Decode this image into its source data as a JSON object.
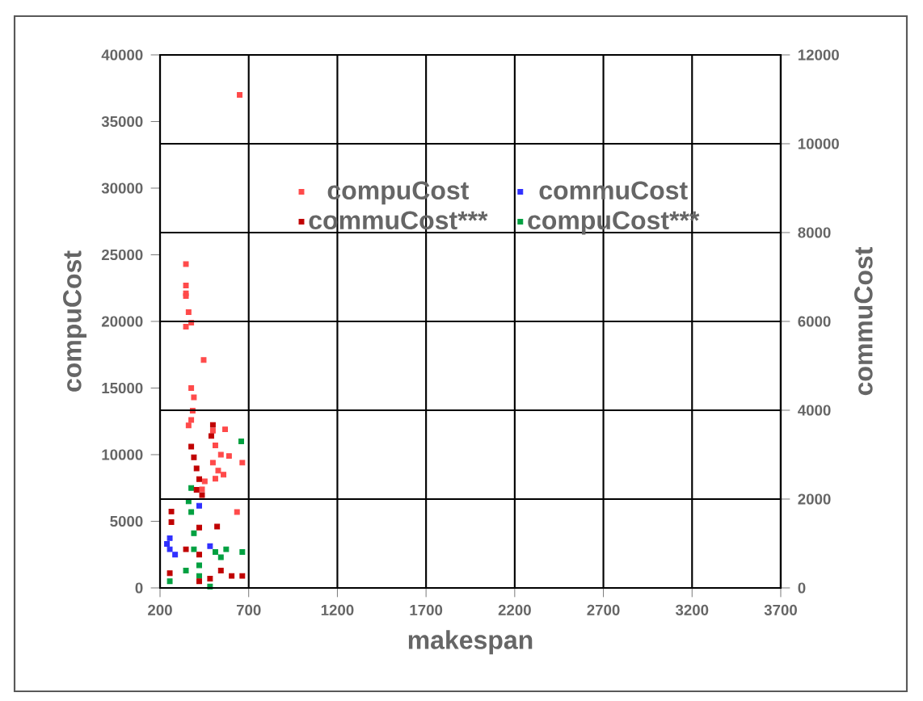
{
  "chart_data": {
    "type": "scatter",
    "xlabel": "makespan",
    "ylabel": "compuCost",
    "y2label": "commuCost",
    "xlim": [
      200,
      3700
    ],
    "xticks": [
      200,
      700,
      1200,
      1700,
      2200,
      2700,
      3200,
      3700
    ],
    "ylim": [
      0,
      40000
    ],
    "yticks": [
      0,
      5000,
      10000,
      15000,
      20000,
      25000,
      30000,
      35000,
      40000
    ],
    "y2lim": [
      0,
      12000
    ],
    "y2ticks": [
      0,
      2000,
      4000,
      6000,
      8000,
      10000,
      12000
    ],
    "grid": true,
    "legend": "top",
    "marker": "square",
    "series": [
      {
        "name": "compuCost",
        "color": "#ff4a4a",
        "x": [
          649,
          346,
          346,
          346,
          346,
          361,
          376,
          346,
          446,
          376,
          391,
          384,
          376,
          361,
          498,
          567,
          512,
          543,
          589,
          664,
          498,
          528,
          558,
          512,
          452,
          437,
          634
        ],
        "values": [
          37000,
          24300,
          22700,
          22100,
          21900,
          20700,
          19900,
          19600,
          17100,
          15000,
          14300,
          13300,
          12600,
          12200,
          11800,
          11900,
          10700,
          10000,
          9900,
          9400,
          9400,
          8800,
          8500,
          8200,
          8000,
          7400,
          5700
        ]
      },
      {
        "name": "commuCost",
        "color": "#3030ff",
        "axis": "y2",
        "x": [
          255,
          255,
          285,
          421,
          482,
          239
        ],
        "values": [
          1120,
          870,
          750,
          1850,
          940,
          990
        ]
      },
      {
        "name": "commuCost***",
        "color": "#c00000",
        "axis": "y2",
        "x": [
          498,
          489,
          376,
          391,
          406,
          421,
          406,
          264,
          264,
          421,
          522,
          346,
          421,
          543,
          604,
          664,
          482,
          255,
          437,
          421
        ],
        "values": [
          3670,
          3420,
          3180,
          2940,
          2690,
          2450,
          2210,
          1720,
          1480,
          1360,
          1380,
          870,
          750,
          390,
          270,
          270,
          210,
          330,
          2090,
          150
        ]
      },
      {
        "name": "compuCost***",
        "color": "#00a040",
        "x": [
          658,
          376,
          361,
          376,
          391,
          391,
          512,
          573,
          543,
          664,
          255,
          421,
          482,
          346,
          421
        ],
        "values": [
          11000,
          7500,
          6500,
          5700,
          4100,
          2900,
          2700,
          2900,
          2300,
          2700,
          500,
          900,
          100,
          1300,
          1700
        ]
      }
    ]
  }
}
